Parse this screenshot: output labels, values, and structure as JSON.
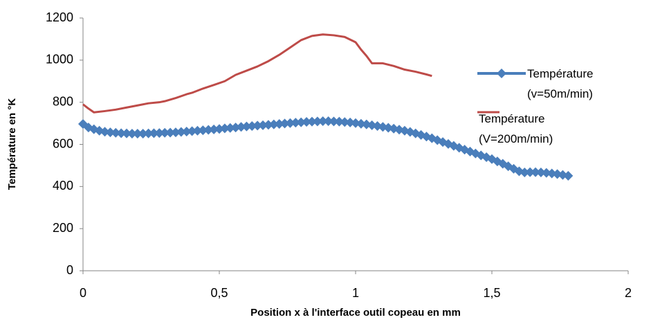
{
  "chart_data": {
    "type": "line",
    "y_label": "Température en °K",
    "x_label": "Position x à l'interface outil copeau en mm",
    "xlim": [
      0,
      2
    ],
    "xticks": [
      0,
      {
        "value": 0.5,
        "label": "0,5"
      },
      1,
      {
        "value": 1.5,
        "label": "1,5"
      },
      2
    ],
    "ylim": [
      0,
      1200
    ],
    "yticks": [
      0,
      200,
      400,
      600,
      800,
      1000,
      1200
    ],
    "grid": false,
    "legend": "right",
    "series": [
      {
        "name": "Température (v=50m/min)",
        "color": "#4a7ebb",
        "marker": "diamond",
        "x": [
          0,
          0.02,
          0.04,
          0.06,
          0.08,
          0.1,
          0.12,
          0.14,
          0.16,
          0.18,
          0.2,
          0.22,
          0.24,
          0.26,
          0.28,
          0.3,
          0.32,
          0.34,
          0.36,
          0.38,
          0.4,
          0.42,
          0.44,
          0.46,
          0.48,
          0.5,
          0.52,
          0.54,
          0.56,
          0.58,
          0.6,
          0.62,
          0.64,
          0.66,
          0.68,
          0.7,
          0.72,
          0.74,
          0.76,
          0.78,
          0.8,
          0.82,
          0.84,
          0.86,
          0.88,
          0.9,
          0.92,
          0.94,
          0.96,
          0.98,
          1.0,
          1.02,
          1.04,
          1.06,
          1.08,
          1.1,
          1.12,
          1.14,
          1.16,
          1.18,
          1.2,
          1.22,
          1.24,
          1.26,
          1.28,
          1.3,
          1.32,
          1.34,
          1.36,
          1.38,
          1.4,
          1.42,
          1.44,
          1.46,
          1.48,
          1.5,
          1.52,
          1.54,
          1.56,
          1.58,
          1.6,
          1.62,
          1.64,
          1.66,
          1.68,
          1.7,
          1.72,
          1.74,
          1.76,
          1.78
        ],
        "values": [
          697,
          680,
          672,
          665,
          660,
          657,
          655,
          653,
          652,
          651,
          651,
          651,
          652,
          653,
          654,
          655,
          656,
          657,
          659,
          661,
          663,
          665,
          667,
          669,
          671,
          673,
          676,
          678,
          680,
          683,
          685,
          687,
          689,
          691,
          693,
          695,
          697,
          699,
          701,
          703,
          705,
          707,
          708,
          709,
          710,
          710,
          709,
          708,
          706,
          704,
          701,
          698,
          695,
          691,
          687,
          683,
          679,
          675,
          670,
          665,
          659,
          652,
          645,
          637,
          629,
          620,
          611,
          602,
          593,
          584,
          575,
          566,
          557,
          548,
          539,
          530,
          519,
          508,
          496,
          484,
          472,
          467,
          468,
          468,
          467,
          465,
          462,
          459,
          455,
          451
        ]
      },
      {
        "name": "Température (V=200m/min)",
        "color": "#be4b48",
        "marker": "none",
        "x": [
          0,
          0.02,
          0.04,
          0.08,
          0.12,
          0.16,
          0.2,
          0.24,
          0.28,
          0.3,
          0.34,
          0.38,
          0.4,
          0.44,
          0.48,
          0.52,
          0.56,
          0.6,
          0.64,
          0.68,
          0.72,
          0.76,
          0.8,
          0.84,
          0.88,
          0.92,
          0.96,
          1.0,
          1.02,
          1.04,
          1.06,
          1.1,
          1.14,
          1.18,
          1.22,
          1.26,
          1.28
        ],
        "values": [
          790,
          770,
          752,
          758,
          765,
          775,
          785,
          795,
          800,
          805,
          820,
          838,
          845,
          865,
          882,
          900,
          930,
          950,
          970,
          995,
          1025,
          1060,
          1095,
          1115,
          1122,
          1118,
          1110,
          1085,
          1050,
          1020,
          985,
          985,
          972,
          955,
          945,
          932,
          925
        ]
      }
    ]
  }
}
